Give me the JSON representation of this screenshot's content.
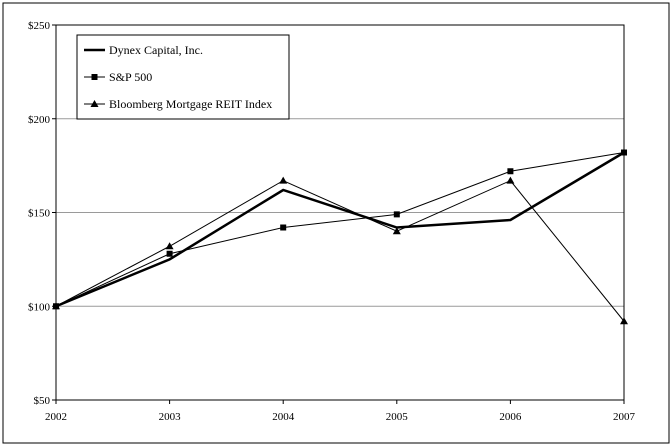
{
  "chart_data": {
    "type": "line",
    "x": [
      "2002",
      "2003",
      "2004",
      "2005",
      "2006",
      "2007"
    ],
    "ylim": [
      50,
      250
    ],
    "yticks": [
      50,
      100,
      150,
      200,
      250
    ],
    "ytick_labels": [
      "$50",
      "$100",
      "$150",
      "$200",
      "$250"
    ],
    "grid": "horizontal",
    "legend_position": "top-left",
    "series": [
      {
        "name": "Dynex Capital, Inc.",
        "values": [
          100,
          125,
          162,
          142,
          146,
          182
        ],
        "marker": "none",
        "color": "#000000",
        "style": "bold"
      },
      {
        "name": "S&P 500",
        "values": [
          100,
          128,
          142,
          149,
          172,
          182
        ],
        "marker": "square",
        "color": "#000000",
        "style": "thin"
      },
      {
        "name": "Bloomberg Mortgage REIT Index",
        "values": [
          100,
          132,
          167,
          140,
          167,
          92
        ],
        "marker": "triangle",
        "color": "#000000",
        "style": "thin"
      }
    ]
  }
}
